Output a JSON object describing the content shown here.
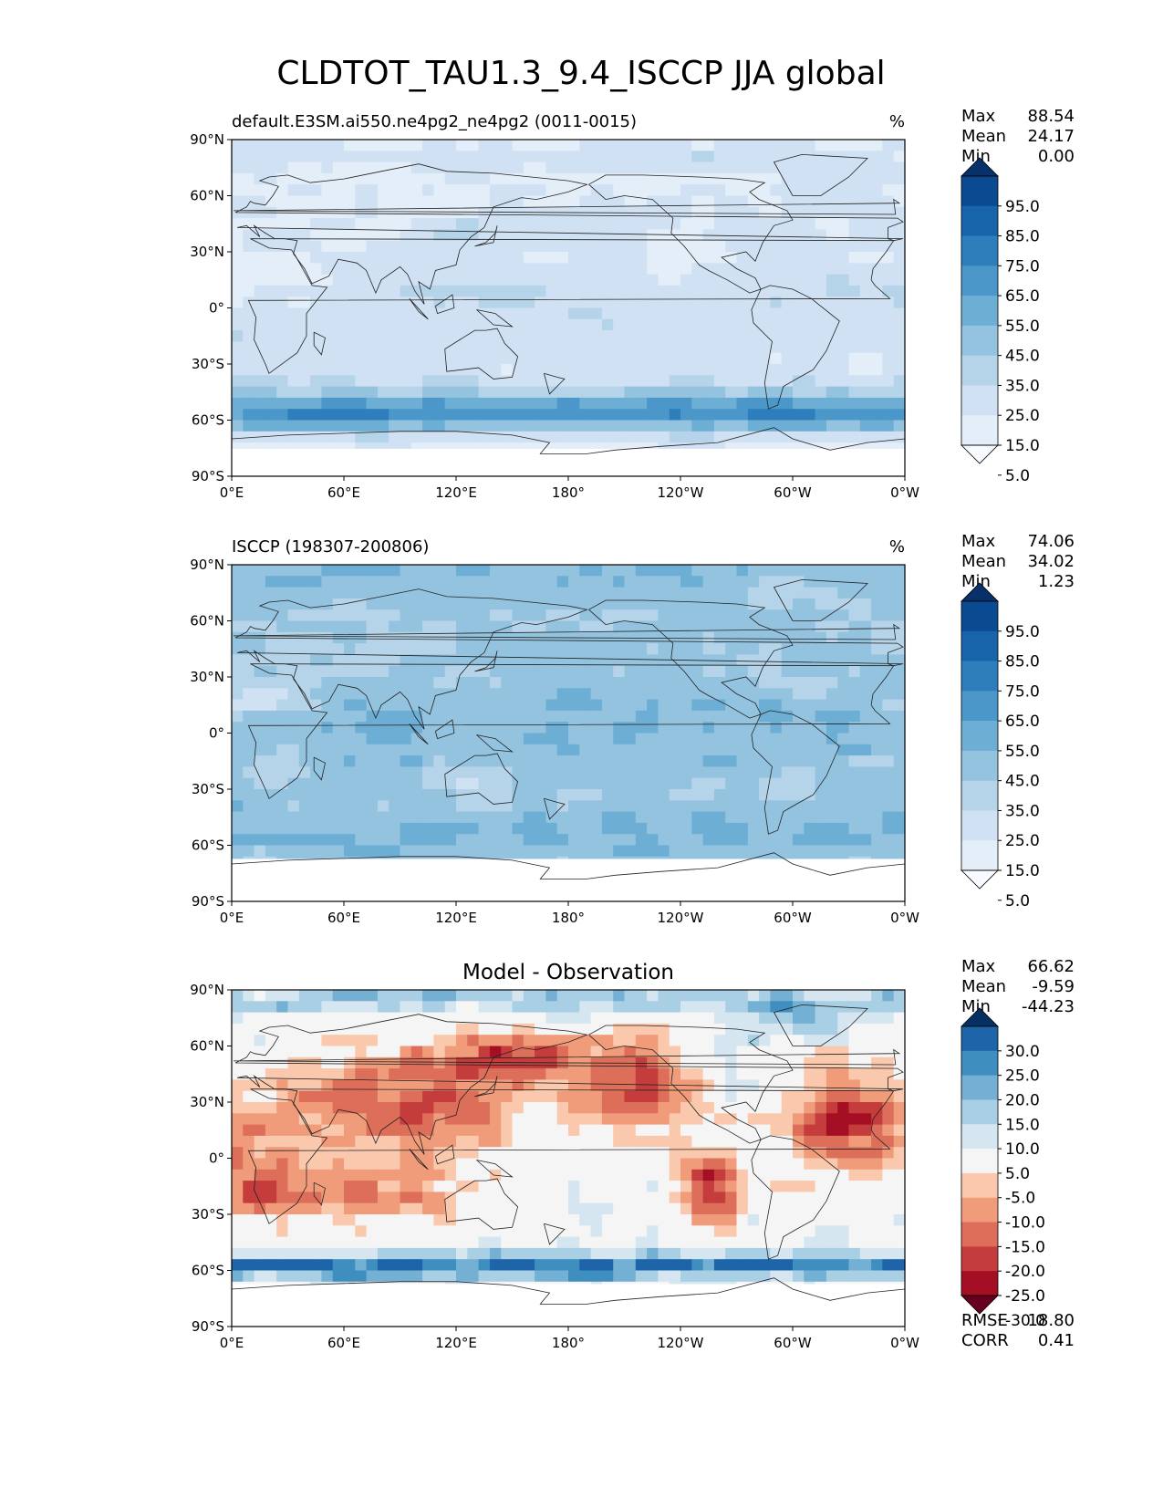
{
  "title": "CLDTOT_TAU1.3_9.4_ISCCP JJA global",
  "axes": {
    "lat_labels": [
      "90°N",
      "60°N",
      "30°N",
      "0°",
      "30°S",
      "60°S",
      "90°S"
    ],
    "lon_labels": [
      "0°E",
      "60°E",
      "120°E",
      "180°",
      "120°W",
      "60°W",
      "0°W"
    ]
  },
  "panels": [
    {
      "id": "test",
      "left_title": "default.E3SM.ai550.ne4pg2_ne4pg2 (0011-0015)",
      "center_title": "",
      "units": "%",
      "stats_labels": [
        "Max",
        "Mean",
        "Min"
      ],
      "stats_values": [
        "88.54",
        "24.17",
        "0.00"
      ],
      "colormap": "Blues",
      "colorbar_ticks": [
        "95.0",
        "85.0",
        "75.0",
        "65.0",
        "55.0",
        "45.0",
        "35.0",
        "25.0",
        "15.0",
        "5.0"
      ],
      "colorbar_colors": [
        "#f7fbff",
        "#e3eef9",
        "#cfe1f2",
        "#b5d4e9",
        "#93c3df",
        "#6daed5",
        "#4b97c9",
        "#2f7ebc",
        "#1864aa",
        "#0a4a90",
        "#08306b"
      ],
      "fill_bottom_lat": -75,
      "field": "test"
    },
    {
      "id": "ref",
      "left_title": "ISCCP (198307-200806)",
      "center_title": "",
      "units": "%",
      "stats_labels": [
        "Max",
        "Mean",
        "Min"
      ],
      "stats_values": [
        "74.06",
        "34.02",
        "1.23"
      ],
      "colormap": "Blues",
      "colorbar_ticks": [
        "95.0",
        "85.0",
        "75.0",
        "65.0",
        "55.0",
        "45.0",
        "35.0",
        "25.0",
        "15.0",
        "5.0"
      ],
      "colorbar_colors": [
        "#f7fbff",
        "#e3eef9",
        "#cfe1f2",
        "#b5d4e9",
        "#93c3df",
        "#6daed5",
        "#4b97c9",
        "#2f7ebc",
        "#1864aa",
        "#0a4a90",
        "#08306b"
      ],
      "fill_bottom_lat": -67,
      "field": "ref"
    },
    {
      "id": "diff",
      "left_title": "",
      "center_title": "Model - Observation",
      "units": "",
      "stats_labels": [
        "Max",
        "Mean",
        "Min"
      ],
      "stats_values": [
        "66.62",
        "-9.59",
        "-44.23"
      ],
      "colormap": "RdBu",
      "colorbar_ticks": [
        "30.0",
        "25.0",
        "20.0",
        "15.0",
        "10.0",
        "5.0",
        "-5.0",
        "-10.0",
        "-15.0",
        "-20.0",
        "-25.0",
        "-30.0"
      ],
      "colorbar_colors": [
        "#67001f",
        "#a50f24",
        "#c43c3c",
        "#dd6e5a",
        "#f09c7b",
        "#fac8ad",
        "#f5f5f5",
        "#d5e6f1",
        "#a9cfe5",
        "#73b0d4",
        "#3f8ec0",
        "#1e64a8",
        "#053061"
      ],
      "fill_bottom_lat": -67,
      "field": "diff",
      "footer_labels": [
        "RMSE",
        "CORR"
      ],
      "footer_values": [
        "18.80",
        "0.41"
      ]
    }
  ]
}
